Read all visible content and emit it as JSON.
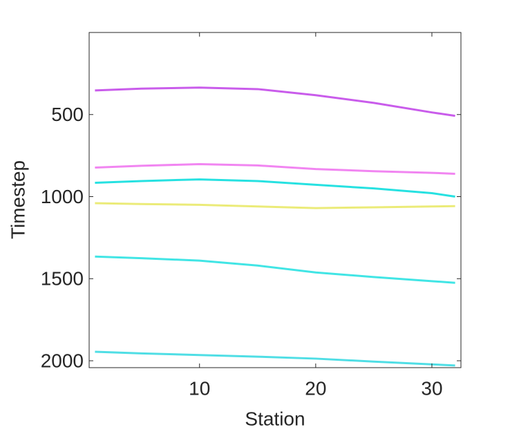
{
  "chart_data": {
    "type": "line",
    "x_label": "Station",
    "y_label": "Timestep",
    "x": [
      1,
      5,
      10,
      15,
      20,
      25,
      30,
      32
    ],
    "xlim": [
      0.5,
      32.5
    ],
    "xticks": [
      10,
      20,
      30
    ],
    "ylim": [
      0,
      2042
    ],
    "yticks": [
      500,
      1000,
      1500,
      2000
    ],
    "y_reversed": true,
    "series": [
      {
        "color": "#c040e8",
        "values": [
          353,
          342,
          336,
          345,
          382,
          429,
          487,
          508
        ]
      },
      {
        "color": "#ee70ee",
        "values": [
          823,
          812,
          802,
          810,
          832,
          845,
          855,
          861
        ]
      },
      {
        "color": "#00dcdc",
        "values": [
          916,
          905,
          895,
          905,
          928,
          950,
          979,
          1000
        ]
      },
      {
        "color": "#20e0e0",
        "values": [
          1365,
          1375,
          1390,
          1420,
          1462,
          1490,
          1515,
          1525
        ]
      },
      {
        "color": "#30d8e0",
        "values": [
          1945,
          1955,
          1965,
          1975,
          1987,
          2005,
          2022,
          2029
        ]
      },
      {
        "color": "#e8e860",
        "values": [
          1040,
          1045,
          1050,
          1060,
          1070,
          1065,
          1060,
          1058
        ]
      }
    ]
  }
}
